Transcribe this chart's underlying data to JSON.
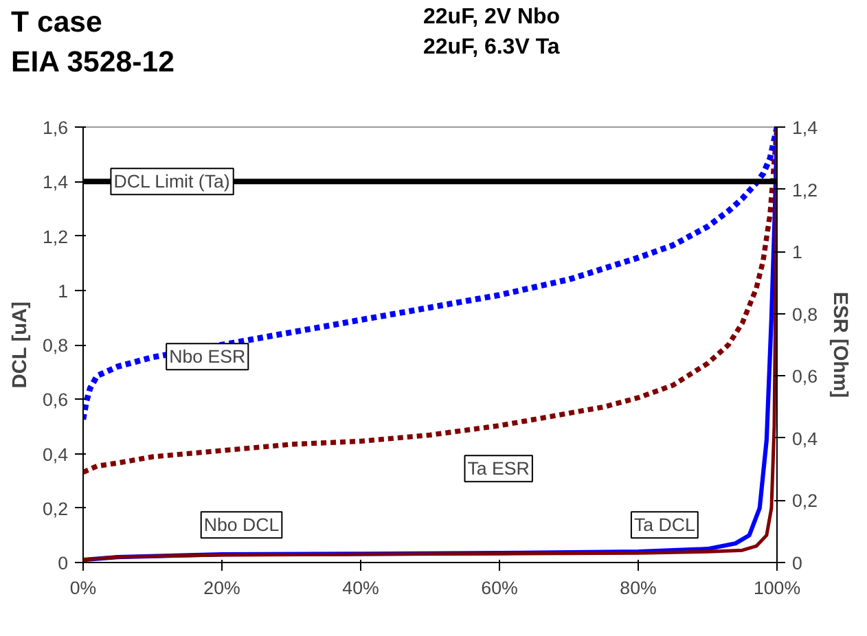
{
  "chart_data": {
    "type": "line",
    "title": "T case\nEIA 3528-12",
    "subtitle": "22uF, 2V Nbo\n22uF, 6.3V Ta",
    "ylabel": "DCL [uA]",
    "y2label": "ESR [Ohm]",
    "xlim": [
      0,
      100
    ],
    "xticks": [
      {
        "value": 0,
        "label": "0%"
      },
      {
        "value": 20,
        "label": "20%"
      },
      {
        "value": 40,
        "label": "40%"
      },
      {
        "value": 60,
        "label": "60%"
      },
      {
        "value": 80,
        "label": "80%"
      },
      {
        "value": 100,
        "label": "100%"
      }
    ],
    "ylim": [
      0,
      1.6
    ],
    "yticks": [
      0,
      {
        "value": 0.2,
        "label": "0,2"
      },
      {
        "value": 0.4,
        "label": "0,4"
      },
      {
        "value": 0.6,
        "label": "0,6"
      },
      {
        "value": 0.8,
        "label": "0,8"
      },
      1,
      {
        "value": 1.2,
        "label": "1,2"
      },
      {
        "value": 1.4,
        "label": "1,4"
      },
      {
        "value": 1.6,
        "label": "1,6"
      }
    ],
    "y2lim": [
      0,
      1.4
    ],
    "y2ticks": [
      0,
      {
        "value": 0.2,
        "label": "0,2"
      },
      {
        "value": 0.4,
        "label": "0,4"
      },
      {
        "value": 0.6,
        "label": "0,6"
      },
      {
        "value": 0.8,
        "label": "0,8"
      },
      1,
      {
        "value": 1.2,
        "label": "1,2"
      },
      {
        "value": 1.4,
        "label": "1,4"
      }
    ],
    "grid": false,
    "series": [
      {
        "name": "Nbo ESR",
        "color": "#0000ff",
        "axis": "y2",
        "line_style": "dashed",
        "x": [
          0,
          0.5,
          1,
          2,
          5,
          10,
          20,
          30,
          40,
          50,
          60,
          70,
          80,
          85,
          90,
          93,
          95,
          97,
          98,
          99,
          100
        ],
        "values": [
          0.46,
          0.52,
          0.56,
          0.6,
          0.63,
          0.66,
          0.7,
          0.74,
          0.78,
          0.82,
          0.86,
          0.91,
          0.98,
          1.02,
          1.08,
          1.13,
          1.17,
          1.22,
          1.25,
          1.3,
          1.4
        ]
      },
      {
        "name": "Ta ESR",
        "color": "#800000",
        "axis": "y2",
        "line_style": "dashed",
        "x": [
          0,
          2,
          5,
          10,
          20,
          30,
          40,
          50,
          60,
          70,
          75,
          80,
          85,
          90,
          93,
          95,
          97,
          98,
          99,
          100
        ],
        "values": [
          0.29,
          0.31,
          0.32,
          0.34,
          0.36,
          0.38,
          0.39,
          0.41,
          0.44,
          0.48,
          0.5,
          0.53,
          0.57,
          0.64,
          0.7,
          0.77,
          0.88,
          0.97,
          1.12,
          1.4
        ]
      },
      {
        "name": "Nbo DCL",
        "color": "#0000ff",
        "line_style": "solid",
        "x": [
          0,
          5,
          20,
          40,
          60,
          80,
          90,
          94,
          96,
          97.5,
          98.5,
          99.2,
          99.7,
          100
        ],
        "values": [
          0.01,
          0.02,
          0.03,
          0.032,
          0.035,
          0.04,
          0.05,
          0.07,
          0.1,
          0.2,
          0.45,
          0.9,
          1.3,
          1.6
        ]
      },
      {
        "name": "Ta DCL",
        "color": "#800000",
        "line_style": "solid",
        "x": [
          0,
          5,
          20,
          40,
          60,
          80,
          90,
          95,
          97,
          98.5,
          99.2,
          99.6,
          99.8,
          100
        ],
        "values": [
          0.01,
          0.02,
          0.028,
          0.03,
          0.032,
          0.035,
          0.04,
          0.045,
          0.06,
          0.1,
          0.2,
          0.5,
          1.0,
          1.6
        ]
      }
    ],
    "ref_lines": [
      {
        "axis": "y",
        "value": 1.4,
        "label": "DCL Limit (Ta)",
        "color": "#000000",
        "line_style": "solid"
      }
    ]
  }
}
